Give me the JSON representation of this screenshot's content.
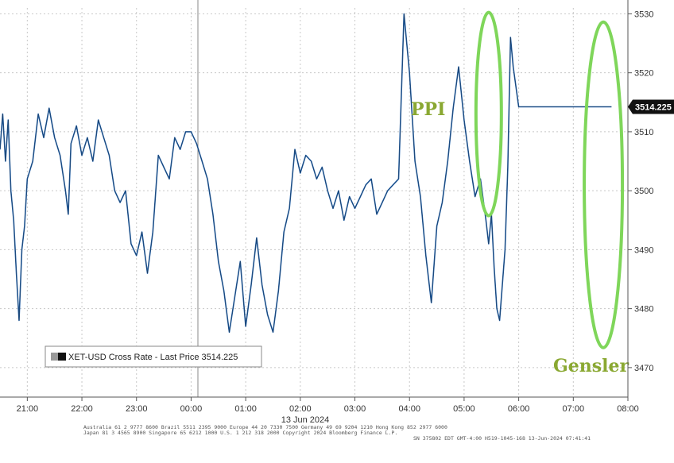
{
  "chart_data": {
    "type": "line",
    "title": "",
    "xlabel": "",
    "ylabel": "",
    "x_tick_labels": [
      "21:00",
      "22:00",
      "23:00",
      "00:00",
      "01:00",
      "02:00",
      "03:00",
      "04:00",
      "05:00",
      "06:00",
      "07:00",
      "08:00"
    ],
    "date_label": "13 Jun 2024",
    "y_ticks": [
      3470,
      3480,
      3490,
      3500,
      3510,
      3520,
      3530
    ],
    "ylim": [
      3465,
      3531
    ],
    "xlim": [
      20.5,
      32.0
    ],
    "grid": true,
    "legend_position": "bottom-left",
    "series": [
      {
        "name": "XET-USD Cross Rate - Last Price 3514.225",
        "color": "#1f5fa8",
        "x": [
          20.5,
          20.55,
          20.6,
          20.65,
          20.7,
          20.75,
          20.8,
          20.85,
          20.9,
          20.95,
          21.0,
          21.1,
          21.2,
          21.3,
          21.4,
          21.5,
          21.6,
          21.7,
          21.75,
          21.8,
          21.9,
          22.0,
          22.1,
          22.2,
          22.3,
          22.4,
          22.5,
          22.6,
          22.7,
          22.8,
          22.9,
          23.0,
          23.1,
          23.2,
          23.3,
          23.4,
          23.5,
          23.6,
          23.7,
          23.8,
          23.9,
          24.0,
          24.1,
          24.2,
          24.3,
          24.4,
          24.5,
          24.6,
          24.7,
          24.8,
          24.9,
          25.0,
          25.1,
          25.2,
          25.3,
          25.4,
          25.5,
          25.6,
          25.7,
          25.8,
          25.9,
          26.0,
          26.1,
          26.2,
          26.3,
          26.4,
          26.5,
          26.6,
          26.7,
          26.8,
          26.9,
          27.0,
          27.1,
          27.2,
          27.3,
          27.4,
          27.5,
          27.6,
          27.7,
          27.8,
          27.9,
          28.0,
          28.1,
          28.2,
          28.3,
          28.4,
          28.5,
          28.6,
          28.7,
          28.8,
          28.9,
          29.0,
          29.1,
          29.2,
          29.3,
          29.4,
          29.45,
          29.5,
          29.55,
          29.6,
          29.65,
          29.7,
          29.75,
          29.8,
          29.85,
          29.9,
          30.0,
          30.1,
          30.2,
          30.3,
          30.4,
          30.5,
          30.6,
          30.7,
          30.75,
          30.8,
          30.9,
          31.0,
          31.1,
          31.2,
          31.3,
          31.35,
          31.4,
          31.45,
          31.5,
          31.55,
          31.6,
          31.65,
          31.7
        ],
        "values": [
          3507,
          3513,
          3505,
          3512,
          3500,
          3495,
          3486,
          3478,
          3490,
          3494,
          3502,
          3505,
          3513,
          3509,
          3514,
          3509,
          3506,
          3500,
          3496,
          3508,
          3511,
          3506,
          3509,
          3505,
          3512,
          3509,
          3506,
          3500,
          3498,
          3500,
          3491,
          3489,
          3493,
          3486,
          3493,
          3506,
          3504,
          3502,
          3509,
          3507,
          3510,
          3510,
          3508,
          3505,
          3502,
          3496,
          3488,
          3483,
          3476,
          3482,
          3488,
          3477,
          3484,
          3492,
          3484,
          3479,
          3476,
          3483,
          3493,
          3497,
          3507,
          3503,
          3506,
          3505,
          3502,
          3504,
          3500,
          3497,
          3500,
          3495,
          3499,
          3497,
          3499,
          3501,
          3502,
          3496,
          3498,
          3500,
          3501,
          3502,
          3530,
          3520,
          3505,
          3499,
          3489,
          3481,
          3494,
          3498,
          3505,
          3514,
          3521,
          3512,
          3505,
          3499,
          3502,
          3495,
          3491,
          3496,
          3487,
          3480,
          3478,
          3484,
          3490,
          3504,
          3526,
          3521,
          3514.225,
          3514.225,
          3514.225,
          3514.225,
          3514.225,
          3514.225,
          3514.225,
          3514.225,
          3514.225,
          3514.225,
          3514.225,
          3514.225,
          3514.225,
          3514.225,
          3514.225,
          3514.225,
          3514.225,
          3514.225,
          3514.225,
          3514.225,
          3514.225,
          3514.225,
          3514.225
        ]
      }
    ],
    "last_price_label": "3514.225",
    "annotations": [
      "PPI",
      "Gensler"
    ],
    "colors": {
      "line": "#1f5fa8",
      "annotation": "#7fd65a",
      "annotation_text": "#8aa832",
      "grid": "#c8c8c8"
    }
  },
  "footer": {
    "line1": "Australia 61 2 9777 8600 Brazil 5511 2395 9000 Europe 44 20 7330 7500 Germany 49 69 9204 1210 Hong Kong 852 2977 6000",
    "line2": "Japan 81 3 4565 8900       Singapore 65 6212 1000       U.S. 1 212 318 2000       Copyright 2024 Bloomberg Finance L.P.",
    "line3": "SN 375802 EDT  GMT-4:00 H519-1045-168 13-Jun-2024 07:41:41"
  }
}
